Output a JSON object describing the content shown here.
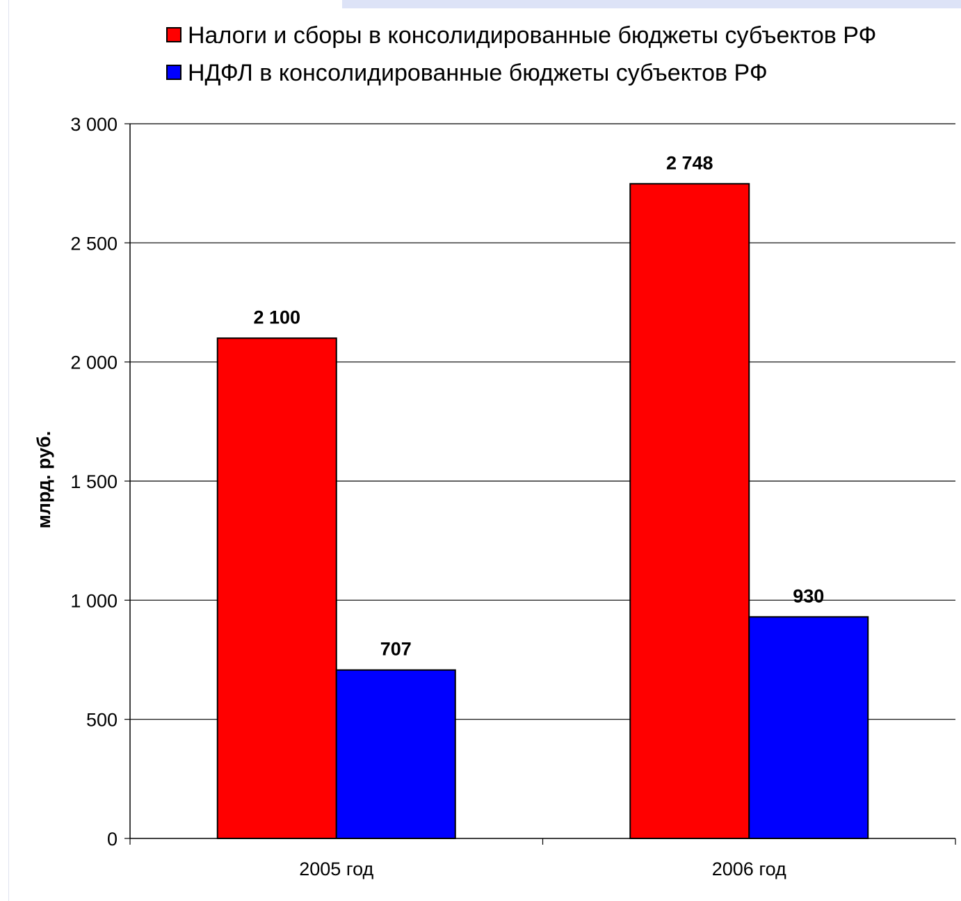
{
  "chart_data": {
    "type": "bar",
    "categories": [
      "2005 год",
      "2006 год"
    ],
    "series": [
      {
        "name": "Налоги и сборы  в консолидированные бюджеты субъектов РФ",
        "values": [
          2100,
          2748
        ],
        "color": "#ff0000",
        "labels": [
          "2 100",
          "2 748"
        ]
      },
      {
        "name": "НДФЛ  в консолидированные бюджеты субъектов РФ",
        "values": [
          707,
          930
        ],
        "color": "#0000ff",
        "labels": [
          "707",
          "930"
        ]
      }
    ],
    "ylabel": "млрд. руб.",
    "xlabel": "",
    "ylim": [
      0,
      3000
    ],
    "yticks": [
      0,
      500,
      1000,
      1500,
      2000,
      2500,
      3000
    ],
    "ytick_labels": [
      "0",
      "500",
      "1 000",
      "1 500",
      "2 000",
      "2 500",
      "3 000"
    ],
    "grid": true,
    "legend_position": "top"
  }
}
